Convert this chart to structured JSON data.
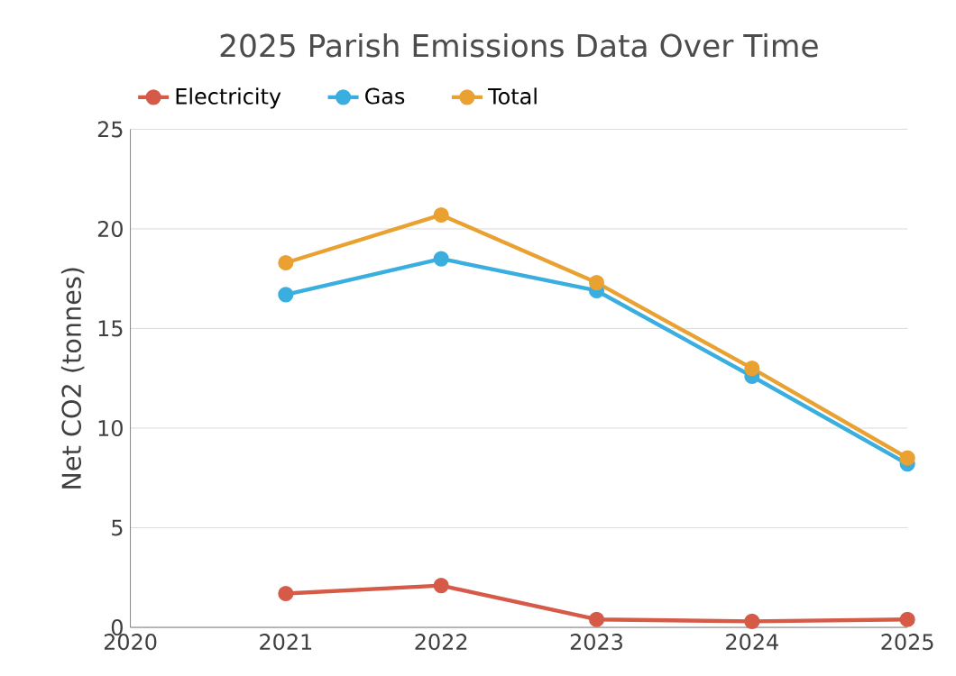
{
  "chart_data": {
    "type": "line",
    "title": "2025 Parish Emissions Data Over Time",
    "ylabel": "Net CO2 (tonnes)",
    "x": [
      2021,
      2022,
      2023,
      2024,
      2025
    ],
    "series": [
      {
        "name": "Electricity",
        "color": "#d65a48",
        "values": [
          1.7,
          2.1,
          0.4,
          0.3,
          0.4
        ]
      },
      {
        "name": "Gas",
        "color": "#3aaedf",
        "values": [
          16.7,
          18.5,
          16.9,
          12.6,
          8.2
        ]
      },
      {
        "name": "Total",
        "color": "#e9a132",
        "values": [
          18.3,
          20.7,
          17.3,
          13.0,
          8.5
        ]
      }
    ],
    "xlim": [
      2020,
      2025
    ],
    "xticks": [
      2020,
      2021,
      2022,
      2023,
      2024,
      2025
    ],
    "ylim": [
      0,
      25
    ],
    "yticks": [
      0,
      5,
      10,
      15,
      20,
      25
    ],
    "grid": "y",
    "legend": "top left",
    "marker": "circle",
    "line_style": "solid"
  }
}
